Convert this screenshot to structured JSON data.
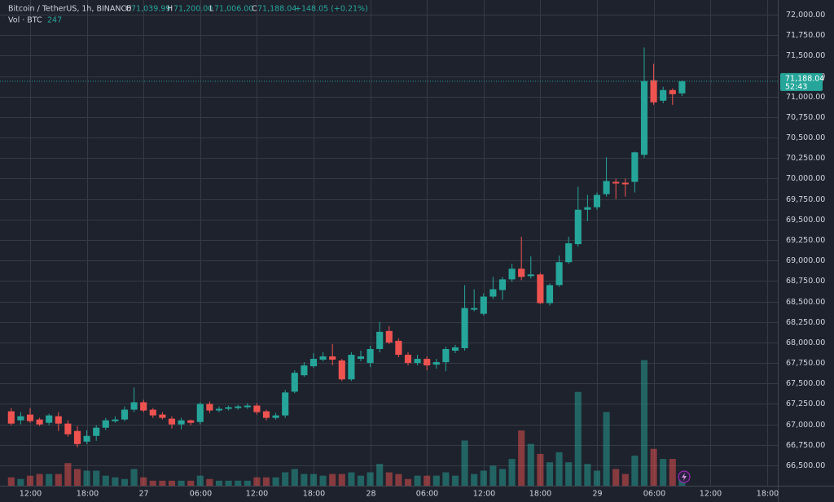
{
  "header": {
    "symbol": "Bitcoin / TetherUS, 1h, BINANCE",
    "o": "O",
    "open": "71,039.99",
    "h": "H",
    "high": "71,200.00",
    "l": "L",
    "low": "71,006.00",
    "c": "C",
    "close": "71,188.04",
    "change": "+148.05 (+0.21%)",
    "vol_label": "Vol · BTC",
    "vol_value": "247"
  },
  "chart_data": {
    "type": "candlestick",
    "up_color": "#26a69a",
    "down_color": "#ef5350",
    "volume_opacity": 0.5,
    "grid": true,
    "open": [
      67160,
      67050,
      67120,
      67060,
      67020,
      67100,
      67010,
      66920,
      66790,
      66860,
      66960,
      67040,
      67060,
      67180,
      67270,
      67180,
      67120,
      67070,
      67000,
      67050,
      67030,
      67250,
      67170,
      67190,
      67200,
      67210,
      67230,
      67160,
      67080,
      67110,
      67400,
      67600,
      67710,
      67790,
      67830,
      67780,
      67550,
      67800,
      67750,
      67920,
      68140,
      68020,
      67850,
      67750,
      67800,
      67730,
      67760,
      67900,
      67930,
      68400,
      68350,
      68560,
      68640,
      68770,
      68900,
      68810,
      68830,
      68480,
      68700,
      68980,
      69200,
      69620,
      69650,
      69810,
      69960,
      69950,
      69960,
      70290,
      71200,
      70950,
      71080,
      71039.99
    ],
    "high": [
      67200,
      67150,
      67200,
      67080,
      67130,
      67150,
      67050,
      66980,
      66930,
      66990,
      67080,
      67100,
      67220,
      67450,
      67300,
      67200,
      67150,
      67100,
      67080,
      67060,
      67270,
      67280,
      67220,
      67230,
      67240,
      67260,
      67260,
      67180,
      67140,
      67420,
      67660,
      67760,
      67870,
      67880,
      67980,
      67800,
      67880,
      67900,
      67960,
      68250,
      68200,
      68050,
      67880,
      67850,
      67830,
      67800,
      67950,
      67970,
      68700,
      68650,
      68600,
      68800,
      68800,
      68960,
      69290,
      69050,
      68850,
      68720,
      69060,
      69290,
      69900,
      69800,
      69830,
      70260,
      70000,
      70000,
      70330,
      71600,
      71400,
      71120,
      71100,
      71200
    ],
    "low": [
      66990,
      67000,
      67020,
      66980,
      66990,
      66920,
      66850,
      66720,
      66760,
      66800,
      66930,
      67020,
      67040,
      67150,
      67150,
      67080,
      67060,
      66950,
      66940,
      66990,
      67000,
      67140,
      67150,
      67170,
      67180,
      67190,
      67120,
      67050,
      67060,
      67080,
      67380,
      67580,
      67690,
      67770,
      67720,
      67530,
      67530,
      67770,
      67700,
      67880,
      67980,
      67820,
      67720,
      67720,
      67660,
      67680,
      67650,
      67870,
      67900,
      68380,
      68330,
      68530,
      68520,
      68740,
      68760,
      68780,
      68470,
      68450,
      68680,
      68960,
      69170,
      69480,
      69620,
      69780,
      69750,
      69780,
      69830,
      70250,
      70900,
      70920,
      70900,
      71006
    ],
    "close": [
      67010,
      67100,
      67040,
      67000,
      67110,
      67010,
      66880,
      66760,
      66860,
      66960,
      67050,
      67060,
      67180,
      67270,
      67170,
      67110,
      67080,
      67000,
      67050,
      67020,
      67250,
      67170,
      67190,
      67210,
      67220,
      67230,
      67150,
      67080,
      67110,
      67390,
      67630,
      67720,
      67800,
      67830,
      67790,
      67550,
      67850,
      67830,
      67920,
      68130,
      68000,
      67850,
      67750,
      67800,
      67720,
      67760,
      67920,
      67940,
      68420,
      68420,
      68560,
      68650,
      68770,
      68900,
      68800,
      68830,
      68480,
      68700,
      68980,
      69210,
      69620,
      69650,
      69800,
      69970,
      69940,
      69930,
      70320,
      71190,
      70930,
      71080,
      71030,
      71188.04
    ],
    "volume": [
      300,
      240,
      360,
      420,
      420,
      420,
      810,
      600,
      540,
      540,
      360,
      300,
      240,
      600,
      300,
      180,
      180,
      180,
      180,
      180,
      360,
      240,
      180,
      180,
      180,
      180,
      300,
      300,
      300,
      480,
      600,
      420,
      420,
      360,
      420,
      420,
      480,
      360,
      480,
      780,
      480,
      420,
      240,
      360,
      360,
      360,
      480,
      360,
      1620,
      420,
      540,
      720,
      600,
      960,
      1980,
      1500,
      1140,
      840,
      1200,
      840,
      3360,
      780,
      540,
      2640,
      600,
      420,
      1080,
      4500,
      1320,
      960,
      960,
      247
    ],
    "xlim": [
      -1.19,
      81.14
    ],
    "xticks": [
      {
        "value": 2,
        "label": "12:00"
      },
      {
        "value": 8,
        "label": "18:00"
      },
      {
        "value": 14,
        "label": "27"
      },
      {
        "value": 20,
        "label": "06:00"
      },
      {
        "value": 26,
        "label": "12:00"
      },
      {
        "value": 32,
        "label": "18:00"
      },
      {
        "value": 38,
        "label": "28"
      },
      {
        "value": 44,
        "label": "06:00"
      },
      {
        "value": 50,
        "label": "12:00"
      },
      {
        "value": 56,
        "label": "18:00"
      },
      {
        "value": 62,
        "label": "29"
      },
      {
        "value": 68,
        "label": "06:00"
      },
      {
        "value": 74,
        "label": "12:00"
      },
      {
        "value": 80,
        "label": "18:00"
      }
    ],
    "ylim": [
      66252,
      72179
    ],
    "yticks": [
      {
        "value": 66500,
        "label": "66,500.00"
      },
      {
        "value": 66750,
        "label": "66,750.00"
      },
      {
        "value": 67000,
        "label": "67,000.00"
      },
      {
        "value": 67250,
        "label": "67,250.00"
      },
      {
        "value": 67500,
        "label": "67,500.00"
      },
      {
        "value": 67750,
        "label": "67,750.00"
      },
      {
        "value": 68000,
        "label": "68,000.00"
      },
      {
        "value": 68250,
        "label": "68,250.00"
      },
      {
        "value": 68500,
        "label": "68,500.00"
      },
      {
        "value": 68750,
        "label": "68,750.00"
      },
      {
        "value": 69000,
        "label": "69,000.00"
      },
      {
        "value": 69250,
        "label": "69,250.00"
      },
      {
        "value": 69500,
        "label": "69,500.00"
      },
      {
        "value": 69750,
        "label": "69,750.00"
      },
      {
        "value": 70000,
        "label": "70,000.00"
      },
      {
        "value": 70250,
        "label": "70,250.00"
      },
      {
        "value": 70500,
        "label": "70,500.00"
      },
      {
        "value": 70750,
        "label": "70,750.00"
      },
      {
        "value": 71000,
        "label": "71,000.00"
      },
      {
        "value": 71250,
        "label": "71,250.00"
      },
      {
        "value": 71500,
        "label": "71,500.00"
      },
      {
        "value": 71750,
        "label": "71,750.00"
      },
      {
        "value": 72000,
        "label": "72,000.00"
      }
    ],
    "vlim": [
      0,
      17400
    ],
    "last_price_label": "71,188.04",
    "countdown": "52:43"
  }
}
